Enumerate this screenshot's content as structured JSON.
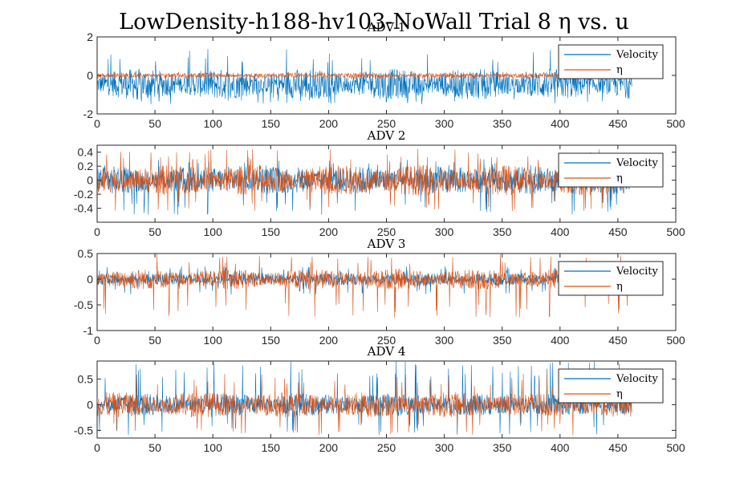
{
  "figure": {
    "title": "LowDensity-h188-hv103-NoWall Trial 8 η vs. u"
  },
  "colors": {
    "velocity": "#0072BD",
    "eta": "#D95319",
    "axes": "#262626"
  },
  "chart_data": [
    {
      "type": "line",
      "title": "ADV 1",
      "xlim": [
        0,
        500
      ],
      "ylim": [
        -2,
        2
      ],
      "x_ticks": [
        "0",
        "50",
        "100",
        "150",
        "200",
        "250",
        "300",
        "350",
        "400",
        "450",
        "500"
      ],
      "y_ticks": [
        {
          "v": 2,
          "label": "2"
        },
        {
          "v": 0,
          "label": "0"
        },
        {
          "v": -2,
          "label": "-2"
        }
      ],
      "legend": "top-right",
      "series": [
        {
          "name": "Velocity",
          "x_range": [
            0,
            462
          ],
          "center": -0.45,
          "amp": 0.8,
          "spike_up": 1.4,
          "spike_down": -1.5
        },
        {
          "name": "η",
          "x_range": [
            0,
            462
          ],
          "center": 0.0,
          "amp": 0.12,
          "spike_up": 0.2,
          "spike_down": -0.2
        }
      ]
    },
    {
      "type": "line",
      "title": "ADV 2",
      "xlim": [
        0,
        500
      ],
      "ylim": [
        -0.6,
        0.5
      ],
      "x_ticks": [
        "0",
        "50",
        "100",
        "150",
        "200",
        "250",
        "300",
        "350",
        "400",
        "450",
        "500"
      ],
      "y_ticks": [
        {
          "v": 0.4,
          "label": "0.4"
        },
        {
          "v": 0.2,
          "label": "0.2"
        },
        {
          "v": 0,
          "label": "0"
        },
        {
          "v": -0.2,
          "label": "-0.2"
        },
        {
          "v": -0.4,
          "label": "-0.4"
        }
      ],
      "legend": "top-right",
      "series": [
        {
          "name": "Velocity",
          "x_range": [
            0,
            462
          ],
          "center": 0.0,
          "amp": 0.2,
          "spike_up": 0.3,
          "spike_down": -0.5
        },
        {
          "name": "η",
          "x_range": [
            0,
            462
          ],
          "center": 0.0,
          "amp": 0.22,
          "spike_up": 0.45,
          "spike_down": -0.45
        }
      ]
    },
    {
      "type": "line",
      "title": "ADV 3",
      "xlim": [
        0,
        500
      ],
      "ylim": [
        -1,
        0.5
      ],
      "x_ticks": [
        "0",
        "50",
        "100",
        "150",
        "200",
        "250",
        "300",
        "350",
        "400",
        "450",
        "500"
      ],
      "y_ticks": [
        {
          "v": 0.5,
          "label": "0.5"
        },
        {
          "v": 0,
          "label": "0"
        },
        {
          "v": -0.5,
          "label": "-0.5"
        },
        {
          "v": -1,
          "label": "-1"
        }
      ],
      "legend": "top-right",
      "series": [
        {
          "name": "Velocity",
          "x_range": [
            0,
            462
          ],
          "center": 0.0,
          "amp": 0.12,
          "spike_up": 0.25,
          "spike_down": -0.3
        },
        {
          "name": "η",
          "x_range": [
            0,
            462
          ],
          "center": 0.0,
          "amp": 0.2,
          "spike_up": 0.5,
          "spike_down": -0.75
        }
      ]
    },
    {
      "type": "line",
      "title": "ADV 4",
      "xlim": [
        0,
        500
      ],
      "ylim": [
        -0.65,
        0.85
      ],
      "x_ticks": [
        "0",
        "50",
        "100",
        "150",
        "200",
        "250",
        "300",
        "350",
        "400",
        "450",
        "500"
      ],
      "y_ticks": [
        {
          "v": 0.5,
          "label": "0.5"
        },
        {
          "v": 0,
          "label": "0"
        },
        {
          "v": -0.5,
          "label": "-0.5"
        }
      ],
      "legend": "top-right",
      "series": [
        {
          "name": "Velocity",
          "x_range": [
            0,
            462
          ],
          "center": 0.0,
          "amp": 0.22,
          "spike_up": 0.85,
          "spike_down": -0.6
        },
        {
          "name": "η",
          "x_range": [
            0,
            462
          ],
          "center": 0.0,
          "amp": 0.25,
          "spike_up": 0.6,
          "spike_down": -0.6
        }
      ]
    }
  ]
}
